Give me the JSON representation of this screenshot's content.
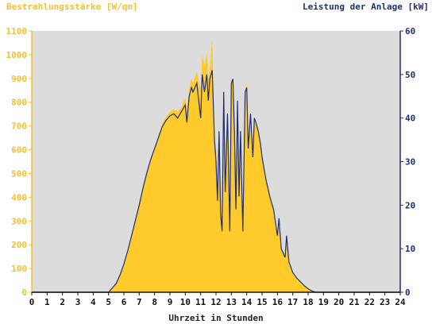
{
  "chart_data": {
    "type": "area",
    "ylabel_left": "Bestrahlungsstärke [W/qm]",
    "ylabel_right": "Leistung der Anlage [kW]",
    "xlabel": "Uhrzeit in Stunden",
    "xlim": [
      0,
      24
    ],
    "ylim_left": [
      0,
      1100
    ],
    "ylim_right": [
      0,
      60
    ],
    "x_ticks": [
      "0",
      "1",
      "2",
      "3",
      "4",
      "5",
      "6",
      "7",
      "8",
      "9",
      "10",
      "11",
      "12",
      "13",
      "14",
      "15",
      "16",
      "17",
      "18",
      "19",
      "20",
      "21",
      "22",
      "23",
      "24"
    ],
    "y_left_ticks": [
      "0",
      "100",
      "200",
      "300",
      "400",
      "500",
      "600",
      "700",
      "800",
      "900",
      "1000",
      "1100"
    ],
    "y_right_ticks": [
      "0",
      "10",
      "20",
      "30",
      "40",
      "50",
      "60"
    ],
    "grid": false,
    "colors": {
      "irradiance": "#ffca2c",
      "power": "#1f2f6f",
      "plot_bg": "#dcdcdc",
      "left_axis": "#f5c030",
      "right_axis": "#1f2f6f"
    },
    "series": [
      {
        "name": "Bestrahlungsstärke [W/qm]",
        "axis": "left",
        "x": [
          0,
          5.0,
          5.25,
          5.5,
          5.75,
          6.0,
          6.25,
          6.5,
          6.75,
          7.0,
          7.25,
          7.5,
          7.75,
          8.0,
          8.25,
          8.5,
          8.75,
          9.0,
          9.25,
          9.5,
          9.75,
          10.0,
          10.1,
          10.25,
          10.4,
          10.5,
          10.75,
          11.0,
          11.1,
          11.25,
          11.4,
          11.5,
          11.6,
          11.75,
          11.9,
          12.0,
          12.1,
          12.2,
          12.3,
          12.4,
          12.5,
          12.6,
          12.75,
          12.9,
          13.0,
          13.1,
          13.2,
          13.3,
          13.4,
          13.5,
          13.6,
          13.75,
          13.9,
          14.0,
          14.1,
          14.25,
          14.4,
          14.5,
          14.6,
          14.75,
          14.9,
          15.0,
          15.25,
          15.5,
          15.75,
          16.0,
          16.1,
          16.25,
          16.5,
          16.6,
          16.75,
          17.0,
          17.25,
          17.5,
          17.75,
          18.0,
          18.25,
          18.5,
          18.75,
          19.0,
          19.25,
          19.5,
          19.75,
          20.0,
          24
        ],
        "values": [
          0,
          0,
          15,
          35,
          70,
          110,
          170,
          240,
          310,
          380,
          450,
          510,
          560,
          610,
          660,
          710,
          740,
          760,
          770,
          760,
          780,
          820,
          760,
          860,
          900,
          880,
          930,
          850,
          1000,
          950,
          1010,
          900,
          950,
          1070,
          650,
          600,
          480,
          700,
          400,
          300,
          870,
          500,
          780,
          320,
          890,
          900,
          700,
          400,
          810,
          500,
          690,
          300,
          860,
          880,
          600,
          760,
          560,
          730,
          710,
          680,
          620,
          580,
          480,
          420,
          340,
          240,
          300,
          180,
          140,
          230,
          120,
          80,
          60,
          40,
          25,
          12,
          4,
          0,
          0,
          0,
          0,
          0,
          0,
          0,
          0
        ]
      },
      {
        "name": "Leistung der Anlage [kW]",
        "axis": "right",
        "x": [
          0,
          5.0,
          5.25,
          5.5,
          5.75,
          6.0,
          6.25,
          6.5,
          6.75,
          7.0,
          7.25,
          7.5,
          7.75,
          8.0,
          8.25,
          8.5,
          8.75,
          9.0,
          9.25,
          9.5,
          9.75,
          10.0,
          10.1,
          10.25,
          10.4,
          10.5,
          10.75,
          11.0,
          11.1,
          11.25,
          11.4,
          11.5,
          11.6,
          11.75,
          11.9,
          12.0,
          12.1,
          12.2,
          12.3,
          12.4,
          12.5,
          12.6,
          12.75,
          12.9,
          13.0,
          13.1,
          13.2,
          13.3,
          13.4,
          13.5,
          13.6,
          13.75,
          13.9,
          14.0,
          14.1,
          14.25,
          14.4,
          14.5,
          14.6,
          14.75,
          14.9,
          15.0,
          15.25,
          15.5,
          15.75,
          16.0,
          16.1,
          16.25,
          16.5,
          16.6,
          16.75,
          17.0,
          17.25,
          17.5,
          17.75,
          18.0,
          18.25,
          18.5,
          18.75,
          19.0,
          19.25,
          19.5,
          19.75,
          20.0,
          24
        ],
        "values": [
          0,
          0,
          1,
          2,
          4,
          6.5,
          9.5,
          13,
          16.5,
          20,
          24,
          27.5,
          30.5,
          33,
          35.5,
          38,
          39.5,
          40.5,
          41,
          40,
          41.5,
          43,
          39,
          45,
          47,
          46,
          48,
          40,
          50,
          46,
          50,
          44,
          49,
          51,
          35,
          30,
          21,
          37,
          18,
          14,
          46,
          23,
          41,
          14,
          48,
          49,
          37,
          19,
          44,
          22,
          37,
          14,
          46,
          47,
          33,
          41,
          31,
          40,
          39,
          37,
          34,
          31,
          26,
          22,
          19,
          13,
          17,
          10,
          8,
          13,
          7,
          4.5,
          3.3,
          2.4,
          1.5,
          0.8,
          0.3,
          0,
          0,
          0,
          0,
          0,
          0,
          0,
          0
        ]
      }
    ]
  }
}
